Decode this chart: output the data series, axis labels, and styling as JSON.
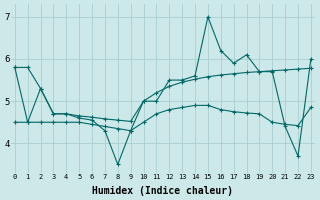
{
  "xlabel": "Humidex (Indice chaleur)",
  "x": [
    0,
    1,
    2,
    3,
    4,
    5,
    6,
    7,
    8,
    9,
    10,
    11,
    12,
    13,
    14,
    15,
    16,
    17,
    18,
    19,
    20,
    21,
    22,
    23
  ],
  "line1": [
    5.8,
    5.8,
    5.3,
    4.7,
    4.7,
    4.65,
    4.62,
    4.58,
    4.55,
    4.52,
    5.0,
    5.2,
    5.35,
    5.45,
    5.52,
    5.58,
    5.62,
    5.65,
    5.68,
    5.7,
    5.72,
    5.74,
    5.76,
    5.78
  ],
  "line2": [
    5.8,
    4.5,
    5.3,
    4.7,
    4.7,
    4.6,
    4.55,
    4.3,
    3.5,
    4.3,
    5.0,
    5.0,
    5.5,
    5.5,
    5.6,
    7.0,
    6.2,
    5.9,
    6.1,
    5.7,
    5.7,
    4.4,
    3.7,
    6.0
  ],
  "line3": [
    4.5,
    4.5,
    4.5,
    4.5,
    4.5,
    4.5,
    4.45,
    4.4,
    4.35,
    4.3,
    4.5,
    4.7,
    4.8,
    4.85,
    4.9,
    4.9,
    4.8,
    4.75,
    4.72,
    4.7,
    4.5,
    4.45,
    4.42,
    4.85
  ],
  "bg_color": "#cde8e8",
  "line_color": "#006868",
  "grid_color": "#aacfcf",
  "ylim": [
    3.3,
    7.3
  ],
  "yticks": [
    4,
    5,
    6,
    7
  ],
  "xticks": [
    0,
    1,
    2,
    3,
    4,
    5,
    6,
    7,
    8,
    9,
    10,
    11,
    12,
    13,
    14,
    15,
    16,
    17,
    18,
    19,
    20,
    21,
    22,
    23
  ]
}
